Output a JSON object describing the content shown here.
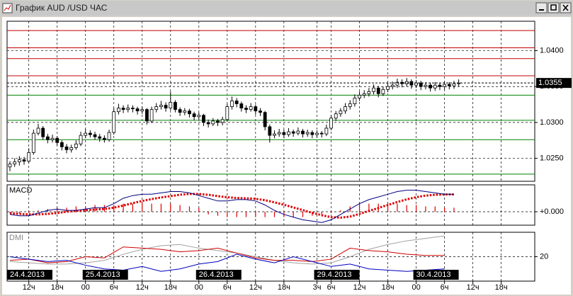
{
  "window": {
    "title": "График AUD /USD ЧАС"
  },
  "chart_data": [
    {
      "type": "candlestick",
      "xlim": [
        -0.6,
        111.1
      ],
      "ylim": [
        1.0218,
        1.0441
      ],
      "grid": true,
      "yticks": [
        {
          "value": 1.025,
          "label": "1.0250"
        },
        {
          "value": 1.03,
          "label": "1.0300"
        },
        {
          "value": 1.035,
          "label": "1.0350"
        },
        {
          "value": 1.04,
          "label": "1.0400"
        }
      ],
      "levels": [
        {
          "value": 1.0428,
          "color": "#c00000"
        },
        {
          "value": 1.0404,
          "color": "#c00000"
        },
        {
          "value": 1.0389,
          "color": "#c00000"
        },
        {
          "value": 1.0365,
          "color": "#c00000"
        },
        {
          "value": 1.0338,
          "color": "#008000"
        },
        {
          "value": 1.0303,
          "color": "#008000"
        },
        {
          "value": 1.0276,
          "color": "#008000"
        },
        {
          "value": 1.0228,
          "color": "#008000"
        }
      ],
      "candles": [
        [
          1.0238,
          1.0246,
          1.0232,
          1.0242
        ],
        [
          1.0242,
          1.025,
          1.0238,
          1.0245
        ],
        [
          1.0245,
          1.0253,
          1.024,
          1.0248
        ],
        [
          1.0248,
          1.0252,
          1.0241,
          1.0246
        ],
        [
          1.0246,
          1.0264,
          1.0243,
          1.0258
        ],
        [
          1.0258,
          1.029,
          1.0255,
          1.0285
        ],
        [
          1.0285,
          1.0298,
          1.0282,
          1.0292
        ],
        [
          1.0292,
          1.0295,
          1.0276,
          1.028
        ],
        [
          1.028,
          1.0284,
          1.0271,
          1.0276
        ],
        [
          1.0276,
          1.0283,
          1.0272,
          1.0278
        ],
        [
          1.0278,
          1.0281,
          1.0268,
          1.0272
        ],
        [
          1.0272,
          1.0275,
          1.0261,
          1.0266
        ],
        [
          1.0266,
          1.027,
          1.0257,
          1.0262
        ],
        [
          1.0262,
          1.0269,
          1.0258,
          1.0265
        ],
        [
          1.0265,
          1.0275,
          1.0262,
          1.027
        ],
        [
          1.027,
          1.0287,
          1.0267,
          1.0282
        ],
        [
          1.0282,
          1.0291,
          1.0278,
          1.0285
        ],
        [
          1.0285,
          1.0289,
          1.0279,
          1.0283
        ],
        [
          1.0283,
          1.0287,
          1.0276,
          1.028
        ],
        [
          1.028,
          1.0284,
          1.0273,
          1.0278
        ],
        [
          1.0278,
          1.0282,
          1.0272,
          1.0276
        ],
        [
          1.0276,
          1.029,
          1.0273,
          1.0286
        ],
        [
          1.0286,
          1.032,
          1.0283,
          1.0315
        ],
        [
          1.0315,
          1.0326,
          1.0311,
          1.032
        ],
        [
          1.032,
          1.0324,
          1.0313,
          1.0318
        ],
        [
          1.0318,
          1.0325,
          1.0314,
          1.032
        ],
        [
          1.032,
          1.0324,
          1.0314,
          1.0319
        ],
        [
          1.0319,
          1.0322,
          1.0311,
          1.0316
        ],
        [
          1.0316,
          1.0322,
          1.0312,
          1.0318
        ],
        [
          1.0318,
          1.032,
          1.0297,
          1.0302
        ],
        [
          1.0302,
          1.0322,
          1.0299,
          1.0318
        ],
        [
          1.0318,
          1.0327,
          1.0314,
          1.0322
        ],
        [
          1.0322,
          1.033,
          1.0318,
          1.0324
        ],
        [
          1.0324,
          1.0328,
          1.0315,
          1.032
        ],
        [
          1.032,
          1.0343,
          1.0317,
          1.0328
        ],
        [
          1.0328,
          1.0331,
          1.0314,
          1.0318
        ],
        [
          1.0318,
          1.0321,
          1.0309,
          1.0314
        ],
        [
          1.0314,
          1.032,
          1.031,
          1.0316
        ],
        [
          1.0316,
          1.0319,
          1.0307,
          1.0312
        ],
        [
          1.0312,
          1.0315,
          1.0303,
          1.0308
        ],
        [
          1.0308,
          1.0314,
          1.0304,
          1.031
        ],
        [
          1.031,
          1.0312,
          1.0295,
          1.03
        ],
        [
          1.03,
          1.0304,
          1.0293,
          1.0298
        ],
        [
          1.0298,
          1.0306,
          1.0295,
          1.0302
        ],
        [
          1.0302,
          1.0305,
          1.0295,
          1.03
        ],
        [
          1.03,
          1.0308,
          1.0296,
          1.0304
        ],
        [
          1.0304,
          1.0326,
          1.0301,
          1.0322
        ],
        [
          1.0322,
          1.0336,
          1.0318,
          1.033
        ],
        [
          1.033,
          1.0334,
          1.0321,
          1.0326
        ],
        [
          1.0326,
          1.0329,
          1.0315,
          1.032
        ],
        [
          1.032,
          1.0324,
          1.0313,
          1.0318
        ],
        [
          1.0318,
          1.0327,
          1.0315,
          1.0322
        ],
        [
          1.0322,
          1.0325,
          1.0311,
          1.0316
        ],
        [
          1.0316,
          1.032,
          1.0309,
          1.0314
        ],
        [
          1.0314,
          1.0316,
          1.0289,
          1.0294
        ],
        [
          1.0294,
          1.0297,
          1.0272,
          1.0282
        ],
        [
          1.0282,
          1.0289,
          1.0278,
          1.0284
        ],
        [
          1.0284,
          1.0291,
          1.028,
          1.0286
        ],
        [
          1.0286,
          1.029,
          1.0278,
          1.0283
        ],
        [
          1.0283,
          1.0292,
          1.028,
          1.0287
        ],
        [
          1.0287,
          1.029,
          1.028,
          1.0285
        ],
        [
          1.0285,
          1.0293,
          1.0282,
          1.0288
        ],
        [
          1.0288,
          1.0291,
          1.0279,
          1.0284
        ],
        [
          1.0284,
          1.029,
          1.028,
          1.0286
        ],
        [
          1.0286,
          1.0289,
          1.0278,
          1.0283
        ],
        [
          1.0283,
          1.0289,
          1.0279,
          1.0285
        ],
        [
          1.0285,
          1.0288,
          1.0279,
          1.0284
        ],
        [
          1.0284,
          1.0297,
          1.0281,
          1.0292
        ],
        [
          1.0292,
          1.031,
          1.0289,
          1.0306
        ],
        [
          1.0306,
          1.0316,
          1.0302,
          1.0312
        ],
        [
          1.0312,
          1.032,
          1.0308,
          1.0316
        ],
        [
          1.0316,
          1.0327,
          1.0312,
          1.0322
        ],
        [
          1.0322,
          1.0331,
          1.0318,
          1.0326
        ],
        [
          1.0326,
          1.0339,
          1.0322,
          1.0334
        ],
        [
          1.0334,
          1.0343,
          1.033,
          1.0338
        ],
        [
          1.0338,
          1.0345,
          1.0334,
          1.034
        ],
        [
          1.034,
          1.0348,
          1.0336,
          1.0343
        ],
        [
          1.0343,
          1.0353,
          1.0339,
          1.0348
        ],
        [
          1.0348,
          1.0351,
          1.0335,
          1.034
        ],
        [
          1.034,
          1.035,
          1.0337,
          1.0346
        ],
        [
          1.0346,
          1.0355,
          1.0342,
          1.035
        ],
        [
          1.035,
          1.0357,
          1.0346,
          1.0352
        ],
        [
          1.0352,
          1.0361,
          1.0348,
          1.0356
        ],
        [
          1.0356,
          1.036,
          1.0349,
          1.0354
        ],
        [
          1.0354,
          1.0362,
          1.035,
          1.0357
        ],
        [
          1.0357,
          1.036,
          1.0347,
          1.0352
        ],
        [
          1.0352,
          1.0359,
          1.0348,
          1.0355
        ],
        [
          1.0355,
          1.0358,
          1.0345,
          1.035
        ],
        [
          1.035,
          1.0356,
          1.0346,
          1.0352
        ],
        [
          1.0352,
          1.0355,
          1.0343,
          1.0348
        ],
        [
          1.0348,
          1.0356,
          1.0344,
          1.0352
        ],
        [
          1.0352,
          1.0355,
          1.0345,
          1.035
        ],
        [
          1.035,
          1.0357,
          1.0346,
          1.0353
        ],
        [
          1.0353,
          1.0356,
          1.0346,
          1.0351
        ],
        [
          1.0351,
          1.0358,
          1.0347,
          1.0354
        ],
        [
          1.0354,
          1.036,
          1.035,
          1.0355
        ]
      ]
    },
    {
      "type": "line",
      "title": "MACD",
      "xlim": [
        -0.6,
        111.1
      ],
      "ylim": [
        -0.0005,
        0.001
      ],
      "grid": true,
      "yticks": [
        {
          "value": 0,
          "label": "+0.000"
        }
      ],
      "x": [
        0,
        2,
        4,
        6,
        8,
        10,
        12,
        14,
        16,
        18,
        20,
        22,
        24,
        26,
        28,
        30,
        32,
        34,
        36,
        38,
        40,
        42,
        44,
        46,
        48,
        50,
        52,
        54,
        56,
        58,
        60,
        62,
        64,
        66,
        68,
        70,
        72,
        74,
        76,
        78,
        80,
        82,
        84,
        86,
        88,
        90,
        92,
        94
      ],
      "series": [
        {
          "color": "#e00000",
          "style": "bar",
          "values": [
            -5e-05,
            -5e-05,
            -5e-05,
            5e-05,
            0.0001,
            0.00015,
            0.00015,
            0.0002,
            0.0002,
            0.00025,
            0.00025,
            0.00025,
            0.0003,
            0.0003,
            0.00035,
            0.0003,
            0.0003,
            0.0003,
            0.00025,
            0.0002,
            0.00015,
            -0.0001,
            -0.00015,
            -0.0002,
            -0.0002,
            -0.0002,
            -0.0002,
            -0.0002,
            -0.0002,
            -0.0002,
            -0.0002,
            -0.0002,
            -0.00015,
            -0.0001,
            -5e-05,
            5e-05,
            0.0002,
            0.0003,
            0.0003,
            0.0003,
            0.0003,
            0.0003,
            0.00025,
            0.00025,
            0.0002,
            0.0002,
            0.00015,
            0.00015
          ]
        },
        {
          "color": "#e00000",
          "style": "dots",
          "values": [
            -5e-05,
            -8e-05,
            -0.0001,
            -0.0001,
            -8e-05,
            -5e-05,
            0,
            3e-05,
            5e-05,
            8e-05,
            0.0001,
            0.00015,
            0.00023,
            0.00032,
            0.0004,
            0.00047,
            0.00053,
            0.00058,
            0.00063,
            0.00066,
            0.00066,
            0.00063,
            0.00058,
            0.00054,
            0.00051,
            0.0005,
            0.00048,
            0.00043,
            0.00035,
            0.00026,
            0.00016,
            6e-05,
            -4e-05,
            -0.00013,
            -0.0002,
            -0.00022,
            -0.00018,
            -8e-05,
            3e-05,
            0.00014,
            0.00025,
            0.00036,
            0.00046,
            0.00054,
            0.0006,
            0.00063,
            0.00064,
            0.00064
          ]
        },
        {
          "color": "#000080",
          "style": "line",
          "values": [
            -0.0001,
            -0.00015,
            -0.00015,
            -5e-05,
            5e-05,
            0.0001,
            5e-05,
            5e-05,
            0.0001,
            0.00015,
            0.00015,
            0.0003,
            0.0005,
            0.0006,
            0.00065,
            0.00065,
            0.0007,
            0.00075,
            0.00075,
            0.0007,
            0.0006,
            0.0005,
            0.0004,
            0.0004,
            0.00045,
            0.00045,
            0.0004,
            0.00025,
            5e-05,
            -0.0001,
            -0.0002,
            -0.0003,
            -0.00035,
            -0.0004,
            -0.0003,
            -0.0001,
            0.0001,
            0.0003,
            0.00045,
            0.00055,
            0.00065,
            0.00075,
            0.0008,
            0.0008,
            0.00075,
            0.0007,
            0.00065,
            0.00065
          ]
        }
      ]
    },
    {
      "type": "line",
      "title": "DMI",
      "xlim": [
        -0.6,
        111.1
      ],
      "ylim": [
        0,
        40
      ],
      "grid": true,
      "yticks": [
        20
      ],
      "xticks": [
        {
          "value": 4,
          "label": "12ч"
        },
        {
          "value": 10,
          "label": "18ч"
        },
        {
          "value": 16,
          "label": "00"
        },
        {
          "value": 22,
          "label": "6ч"
        },
        {
          "value": 28,
          "label": "12ч"
        },
        {
          "value": 34,
          "label": "18ч"
        },
        {
          "value": 40,
          "label": "00"
        },
        {
          "value": 46,
          "label": "6ч"
        },
        {
          "value": 52,
          "label": "12ч"
        },
        {
          "value": 58,
          "label": "18ч"
        },
        {
          "value": 65,
          "label": "3ч"
        },
        {
          "value": 68,
          "label": "6ч"
        },
        {
          "value": 74,
          "label": "12ч"
        },
        {
          "value": 80,
          "label": "18ч"
        },
        {
          "value": 86,
          "label": "00"
        },
        {
          "value": 92,
          "label": "6ч"
        },
        {
          "value": 98,
          "label": "12ч"
        },
        {
          "value": 104,
          "label": "18ч"
        }
      ],
      "date_labels": [
        {
          "value": 0,
          "label": "24.4.2013"
        },
        {
          "value": 16,
          "label": "25.4.2013"
        },
        {
          "value": 40,
          "label": "26.4.2013"
        },
        {
          "value": 65,
          "label": "29.4.2013"
        },
        {
          "value": 86,
          "label": "30.4.2013"
        }
      ],
      "x": [
        0,
        4,
        8,
        12,
        16,
        20,
        24,
        28,
        32,
        36,
        40,
        44,
        48,
        52,
        56,
        60,
        64,
        68,
        72,
        76,
        80,
        84,
        88,
        92
      ],
      "series": [
        {
          "color": "#a0a0a0",
          "style": "line",
          "values": [
            16,
            15,
            14,
            14,
            15,
            17,
            22,
            26,
            29,
            30,
            27,
            25,
            23,
            20,
            17,
            15,
            14,
            15,
            20,
            26,
            30,
            33,
            35,
            37
          ]
        },
        {
          "color": "#d00000",
          "style": "line",
          "values": [
            17,
            18,
            15,
            16,
            20,
            19,
            28,
            27,
            26,
            24,
            25,
            27,
            23,
            19,
            17,
            17,
            16,
            18,
            27,
            25,
            24,
            22,
            21,
            21
          ]
        },
        {
          "color": "#0000c0",
          "style": "line",
          "values": [
            20,
            18,
            16,
            17,
            13,
            10,
            9,
            12,
            8,
            10,
            14,
            16,
            22,
            18,
            15,
            20,
            16,
            12,
            14,
            10,
            9,
            8,
            9,
            10
          ]
        }
      ]
    }
  ]
}
